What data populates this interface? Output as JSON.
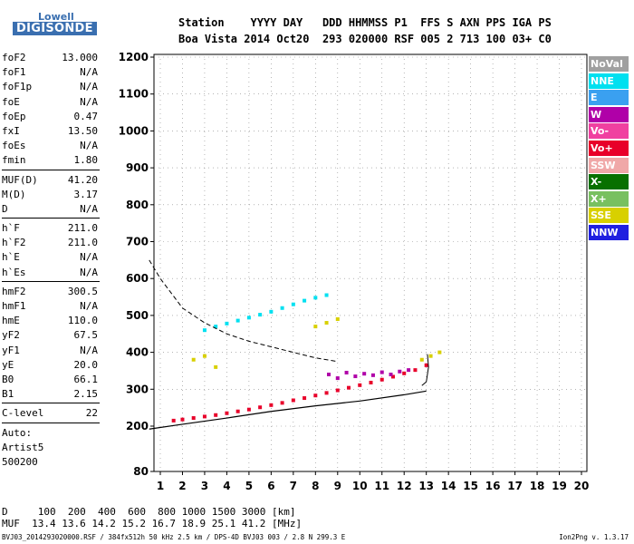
{
  "logo": {
    "top": "Lowell",
    "bottom": "DIGISONDE"
  },
  "header": {
    "line1": "Station    YYYY DAY   DDD HHMMSS P1  FFS S AXN PPS IGA PS",
    "line2": "Boa Vista 2014 Oct20  293 020000 RSF 005 2 713 100 03+ C0"
  },
  "params": {
    "group1": [
      {
        "name": "foF2",
        "value": "13.000"
      },
      {
        "name": "foF1",
        "value": "N/A"
      },
      {
        "name": "foF1p",
        "value": "N/A"
      },
      {
        "name": "foE",
        "value": "N/A"
      },
      {
        "name": "foEp",
        "value": "0.47"
      },
      {
        "name": "fxI",
        "value": "13.50"
      },
      {
        "name": "foEs",
        "value": "N/A"
      },
      {
        "name": "fmin",
        "value": "1.80"
      }
    ],
    "group2": [
      {
        "name": "MUF(D)",
        "value": "41.20"
      },
      {
        "name": "M(D)",
        "value": "3.17"
      },
      {
        "name": "D",
        "value": "N/A"
      }
    ],
    "group3": [
      {
        "name": "h`F",
        "value": "211.0"
      },
      {
        "name": "h`F2",
        "value": "211.0"
      },
      {
        "name": "h`E",
        "value": "N/A"
      },
      {
        "name": "h`Es",
        "value": "N/A"
      }
    ],
    "group4": [
      {
        "name": "hmF2",
        "value": "300.5"
      },
      {
        "name": "hmF1",
        "value": "N/A"
      },
      {
        "name": "hmE",
        "value": "110.0"
      },
      {
        "name": "yF2",
        "value": "67.5"
      },
      {
        "name": "yF1",
        "value": "N/A"
      },
      {
        "name": "yE",
        "value": "20.0"
      },
      {
        "name": "B0",
        "value": "66.1"
      },
      {
        "name": "B1",
        "value": "2.15"
      }
    ],
    "group5": [
      {
        "name": "C-level",
        "value": "22"
      }
    ],
    "free": [
      "Auto:",
      "Artist5",
      "500200"
    ]
  },
  "legend": [
    {
      "label": "NoVal",
      "color": "#a0a0a0"
    },
    {
      "label": "NNE",
      "color": "#00e0f0"
    },
    {
      "label": "E",
      "color": "#3aa0f0"
    },
    {
      "label": "W",
      "color": "#b000a8"
    },
    {
      "label": "Vo-",
      "color": "#f040a0"
    },
    {
      "label": "Vo+",
      "color": "#e8002a"
    },
    {
      "label": "SSW",
      "color": "#f0a8a8"
    },
    {
      "label": "X-",
      "color": "#087000"
    },
    {
      "label": "X+",
      "color": "#78c060"
    },
    {
      "label": "SSE",
      "color": "#d8d000"
    },
    {
      "label": "NNW",
      "color": "#2020e0"
    }
  ],
  "footer": {
    "row1": "D     100  200  400  600  800 1000 1500 3000 [km]",
    "row2": "MUF  13.4 13.6 14.2 15.2 16.7 18.9 25.1 41.2 [MHz]",
    "file": "BVJ03_2014293020000.RSF / 384fx512h 50 kHz 2.5 km / DPS-4D BVJ03 003 / 2.8 N 299.3 E",
    "version": "Ion2Png v. 1.3.17"
  },
  "chart_data": {
    "type": "scatter",
    "xlim": [
      0.5,
      20.2
    ],
    "ylim": [
      80,
      1200
    ],
    "x_ticks": [
      1,
      2,
      3,
      4,
      5,
      6,
      7,
      8,
      9,
      10,
      11,
      12,
      13,
      14,
      15,
      16,
      17,
      18,
      19,
      20
    ],
    "y_ticks": [
      80,
      200,
      300,
      400,
      500,
      600,
      700,
      800,
      900,
      1000,
      1100,
      1200
    ],
    "grid": true,
    "series": [
      {
        "name": "Vo+",
        "color": "#e8002a",
        "x": [
          1.6,
          2.0,
          2.5,
          3.0,
          3.5,
          4.0,
          4.5,
          5.0,
          5.5,
          6.0,
          6.5,
          7.0,
          7.5,
          8.0,
          8.5,
          9.0,
          9.5,
          10.0,
          10.5,
          11.0,
          11.5,
          12.0,
          12.5,
          13.0
        ],
        "y": [
          215,
          218,
          222,
          226,
          230,
          235,
          240,
          245,
          251,
          257,
          263,
          270,
          276,
          283,
          290,
          297,
          304,
          311,
          318,
          326,
          334,
          343,
          352,
          365
        ]
      },
      {
        "name": "W",
        "color": "#b000a8",
        "x": [
          8.6,
          9.0,
          9.4,
          9.8,
          10.2,
          10.6,
          11.0,
          11.4,
          11.8,
          12.2
        ],
        "y": [
          340,
          330,
          345,
          335,
          342,
          338,
          346,
          340,
          348,
          352
        ]
      },
      {
        "name": "NNE",
        "color": "#00e0f0",
        "x": [
          3.0,
          3.5,
          4.0,
          4.5,
          5.0,
          5.5,
          6.0,
          6.5,
          7.0,
          7.5,
          8.0,
          8.5
        ],
        "y": [
          460,
          470,
          478,
          486,
          494,
          502,
          510,
          520,
          530,
          540,
          548,
          555
        ]
      },
      {
        "name": "SSE",
        "color": "#d8d000",
        "x": [
          2.5,
          3.0,
          3.5,
          8.0,
          8.5,
          9.0,
          12.8,
          13.2,
          13.6
        ],
        "y": [
          380,
          390,
          360,
          470,
          480,
          490,
          380,
          390,
          400
        ]
      }
    ],
    "profile_solid": {
      "x": [
        0.5,
        2,
        4,
        6,
        8,
        10,
        12,
        13
      ],
      "y": [
        192,
        205,
        222,
        240,
        255,
        268,
        285,
        295
      ]
    },
    "profile_dashed": {
      "x": [
        0.5,
        1,
        2,
        3,
        4,
        5,
        6,
        7,
        8,
        9
      ],
      "y": [
        650,
        600,
        520,
        480,
        450,
        430,
        415,
        400,
        385,
        375
      ]
    },
    "trace_upper": {
      "x": [
        12.8,
        13.0,
        13.05,
        13.1,
        13.05
      ],
      "y": [
        310,
        320,
        340,
        360,
        395
      ]
    }
  }
}
